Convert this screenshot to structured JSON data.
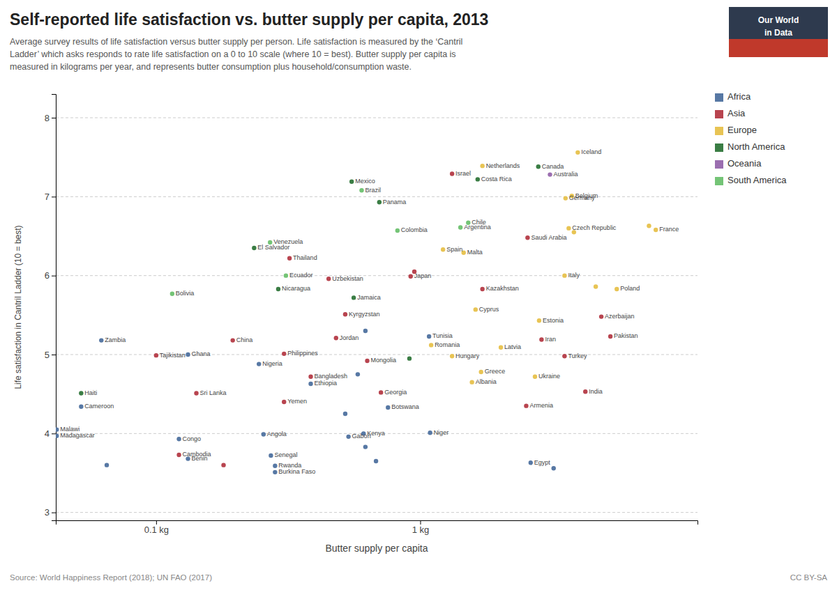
{
  "chart_data": {
    "type": "scatter",
    "title": "Self-reported life satisfaction vs. butter supply per capita, 2013",
    "subtitle": "Average survey results of life satisfaction versus butter supply per person. Life satisfaction is measured by the ‘Cantril\nLadder’ which asks responds to rate life satisfaction on a 0 to 10 scale (where 10 = best). Butter supply per capita is\nmeasured in kilograms per year, and represents butter consumption plus household/consumption waste.",
    "xlabel": "Butter supply per capita",
    "ylabel": "Life satisfaction in Cantril Ladder (10 = best)",
    "source": "Source: World Happiness Report (2018); UN FAO (2017)",
    "license": "CC BY-SA",
    "logo": [
      "Our World",
      "in Data"
    ],
    "log": "x",
    "grid": true,
    "legend": "right",
    "xlim": [
      0.04168693834703354,
      11.220184543019636
    ],
    "xticks": [
      {
        "value": 0.1,
        "label": "0.1 kg"
      },
      {
        "value": 1,
        "label": "1 kg"
      }
    ],
    "ylim": [
      2.9,
      8.3
    ],
    "yticks": [
      3,
      4,
      5,
      6,
      7,
      8
    ],
    "series": [
      {
        "name": "Africa",
        "color": "#5778a4",
        "x": [
          1.08,
          0.062,
          0.132,
          0.245,
          0.385,
          0.052,
          0.755,
          0.042,
          0.042,
          0.122,
          0.255,
          0.535,
          0.61,
          1.09,
          0.132,
          0.272,
          0.282,
          2.62,
          0.282,
          0.065,
          0.52,
          0.62,
          0.58,
          3.2,
          0.68,
          0.62
        ],
        "values": [
          5.23,
          5.18,
          5.0,
          4.88,
          4.63,
          4.34,
          4.33,
          4.05,
          3.97,
          3.93,
          3.99,
          3.96,
          4.0,
          4.01,
          3.68,
          3.72,
          3.59,
          3.63,
          3.51,
          3.6,
          4.25,
          3.83,
          4.75,
          3.56,
          3.65,
          5.3
        ],
        "labels": [
          "Tunisia",
          "Zambia",
          "Ghana",
          "Nigeria",
          "Ethiopia",
          "Cameroon",
          "Botswana",
          "Malawi",
          "Madagascar",
          "Congo",
          "Angola",
          "Gabon",
          "Kenya",
          "Niger",
          "Benin",
          "Senegal",
          "Rwanda",
          "Egypt",
          "Burkina Faso",
          null,
          null,
          null,
          null,
          null,
          null,
          null
        ]
      },
      {
        "name": "Asia",
        "color": "#b8444f",
        "x": [
          1.32,
          2.55,
          0.32,
          0.92,
          0.45,
          1.72,
          4.85,
          0.52,
          0.195,
          0.48,
          0.305,
          2.88,
          5.25,
          3.52,
          0.1,
          0.63,
          4.22,
          0.385,
          0.71,
          2.52,
          0.142,
          0.305,
          0.122,
          0.95,
          0.18
        ],
        "values": [
          7.29,
          6.48,
          6.22,
          5.99,
          5.96,
          5.83,
          5.48,
          5.51,
          5.18,
          5.21,
          5.01,
          5.19,
          5.23,
          4.98,
          4.99,
          4.92,
          4.53,
          4.72,
          4.52,
          4.35,
          4.51,
          4.4,
          3.73,
          6.05,
          3.6
        ],
        "labels": [
          "Israel",
          "Saudi Arabia",
          "Thailand",
          "Japan",
          "Uzbekistan",
          "Kazakhstan",
          "Azerbaijan",
          "Kyrgyzstan",
          "China",
          "Jordan",
          "Philippines",
          "Iran",
          "Pakistan",
          "Turkey",
          "Tajikistan",
          "Mongolia",
          "India",
          "Bangladesh",
          "Georgia",
          "Armenia",
          "Sri Lanka",
          "Yemen",
          "Cambodia",
          null,
          null
        ]
      },
      {
        "name": "Europe",
        "color": "#e8c454",
        "x": [
          3.95,
          1.72,
          3.75,
          3.55,
          3.65,
          7.8,
          1.46,
          1.22,
          3.52,
          5.55,
          1.62,
          2.82,
          1.1,
          1.32,
          2.02,
          1.7,
          1.57,
          2.72,
          3.82,
          7.35,
          4.62
        ],
        "values": [
          7.56,
          7.39,
          7.01,
          6.98,
          6.6,
          6.58,
          6.29,
          6.33,
          6.0,
          5.83,
          5.57,
          5.43,
          5.12,
          4.98,
          5.09,
          4.78,
          4.65,
          4.72,
          6.55,
          6.63,
          5.86
        ],
        "labels": [
          "Iceland",
          "Netherlands",
          "Belgium",
          "Germany",
          "Czech Republic",
          "France",
          "Malta",
          "Spain",
          "Italy",
          "Poland",
          "Cyprus",
          "Estonia",
          "Romania",
          "Hungary",
          "Latvia",
          "Greece",
          "Albania",
          "Ukraine",
          null,
          null,
          null
        ]
      },
      {
        "name": "North America",
        "color": "#3a7d44",
        "x": [
          2.8,
          1.65,
          0.55,
          0.7,
          0.235,
          0.29,
          0.56,
          0.052,
          0.91
        ],
        "values": [
          7.38,
          7.22,
          7.19,
          6.93,
          6.35,
          5.83,
          5.72,
          4.51,
          4.95
        ],
        "labels": [
          "Canada",
          "Costa Rica",
          "Mexico",
          "Panama",
          "El Salvador",
          "Nicaragua",
          "Jamaica",
          "Haiti",
          null
        ]
      },
      {
        "name": "Oceania",
        "color": "#9b6eb0",
        "x": [
          3.1
        ],
        "values": [
          7.28
        ],
        "labels": [
          "Australia"
        ]
      },
      {
        "name": "South America",
        "color": "#74c476",
        "x": [
          0.6,
          1.52,
          1.42,
          0.82,
          0.27,
          0.31,
          0.115
        ],
        "values": [
          7.08,
          6.67,
          6.61,
          6.57,
          6.42,
          6.0,
          5.77
        ],
        "labels": [
          "Brazil",
          "Chile",
          "Argentina",
          "Colombia",
          "Venezuela",
          "Ecuador",
          "Bolivia"
        ]
      }
    ]
  }
}
